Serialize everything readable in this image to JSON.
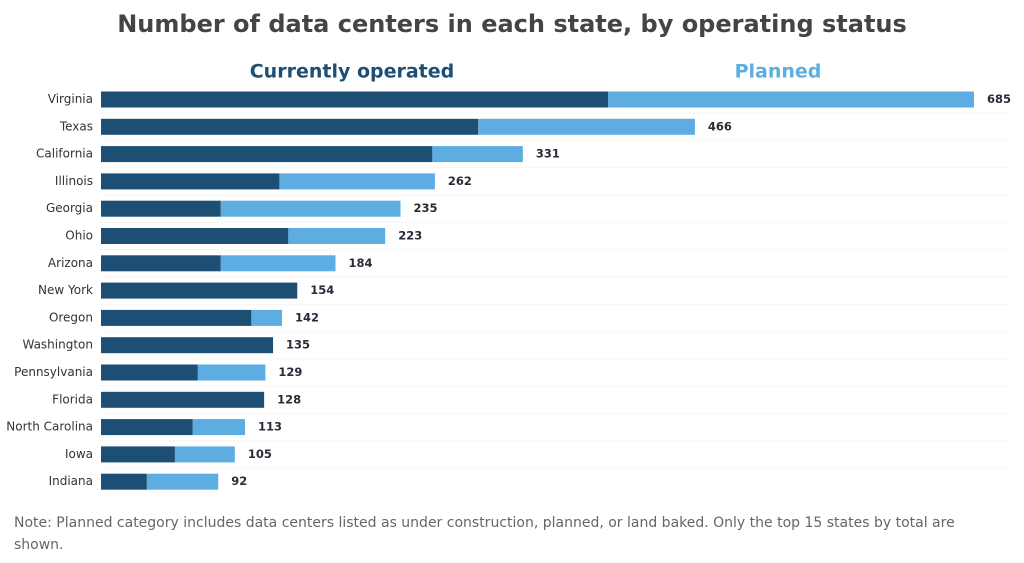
{
  "chart_data": {
    "type": "stacked-barh",
    "title": "Number of data centers in each state, by operating status",
    "categories": [
      "Virginia",
      "Texas",
      "California",
      "Illinois",
      "Georgia",
      "Ohio",
      "Arizona",
      "New York",
      "Oregon",
      "Washington",
      "Pennsylvania",
      "Florida",
      "North Carolina",
      "Iowa",
      "Indiana"
    ],
    "series": [
      {
        "name": "Currently operated",
        "color": "#1d4e74",
        "values": [
          398,
          296,
          260,
          140,
          94,
          147,
          94,
          154,
          118,
          135,
          76,
          128,
          72,
          58,
          36
        ]
      },
      {
        "name": "Planned",
        "color": "#5dade2",
        "values": [
          287,
          170,
          71,
          122,
          141,
          76,
          90,
          0,
          24,
          0,
          53,
          0,
          41,
          47,
          56
        ]
      }
    ],
    "totals": [
      685,
      466,
      331,
      262,
      235,
      223,
      184,
      154,
      142,
      135,
      129,
      128,
      113,
      105,
      92
    ],
    "xlim": [
      0,
      685
    ],
    "note": "Note: Planned category includes data centers listed as under construction, planned, or land baked. Only the top 15 states by total are shown."
  }
}
